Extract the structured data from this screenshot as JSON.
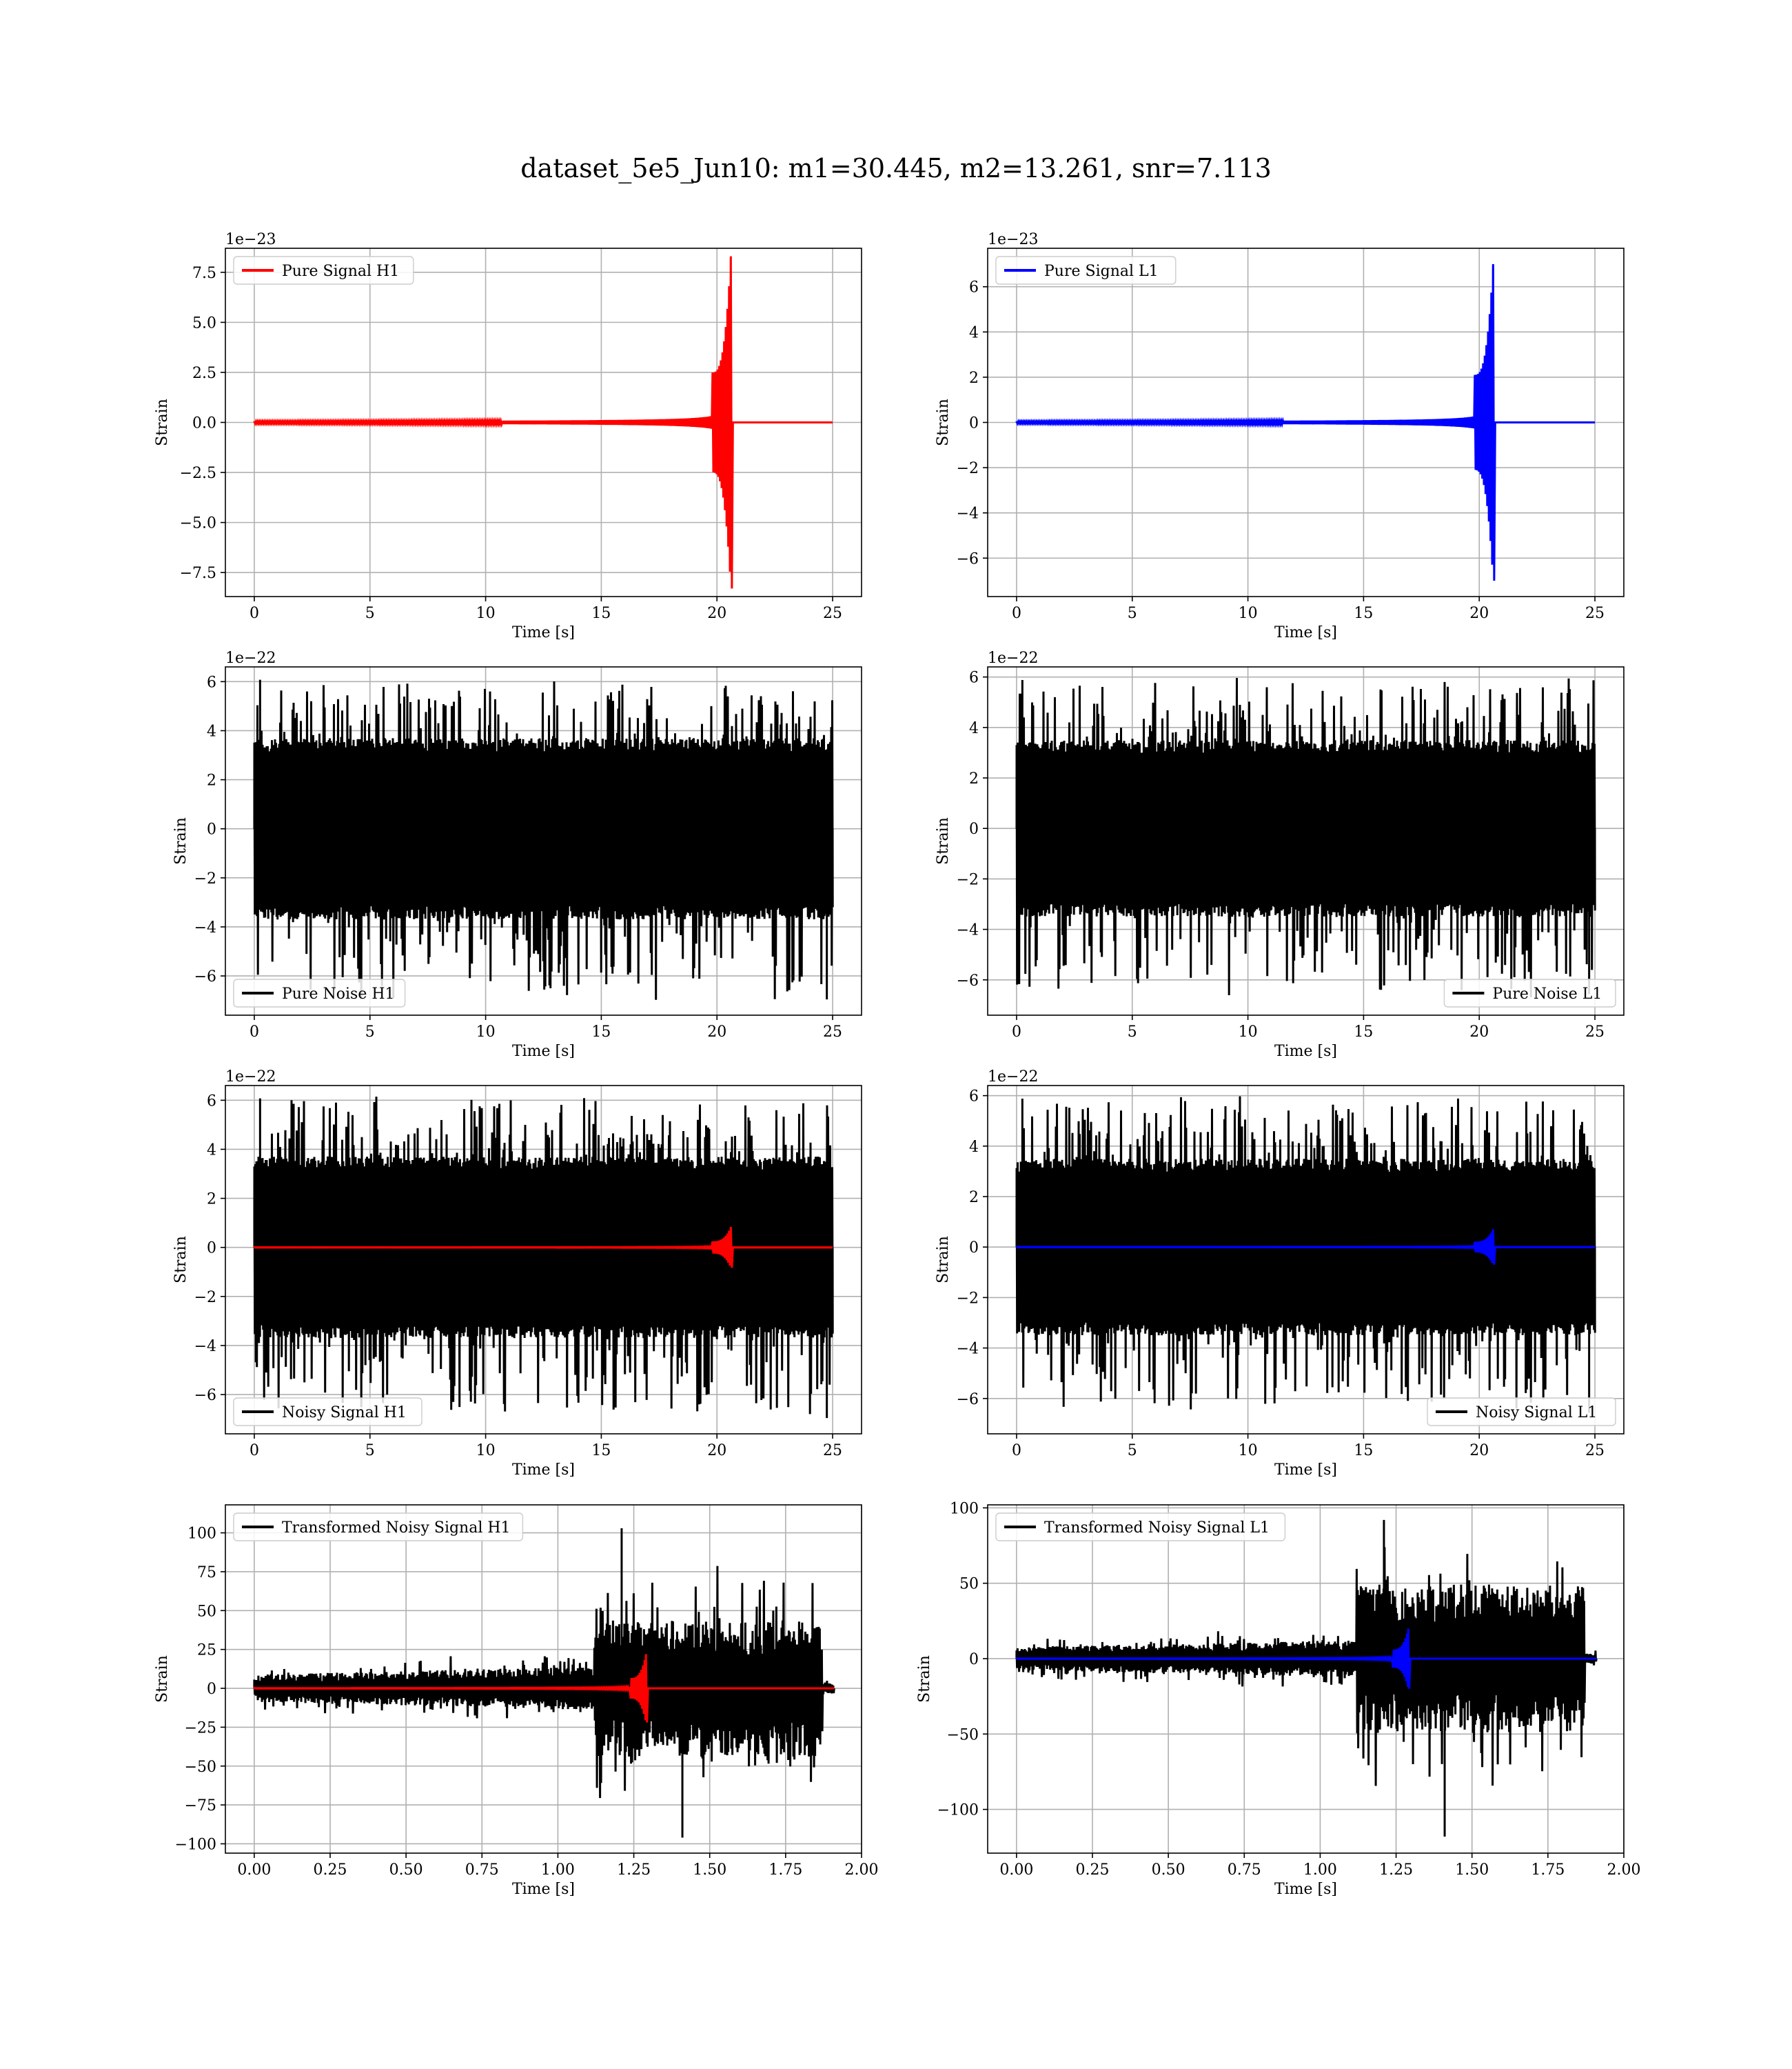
{
  "figure": {
    "suptitle": "dataset_5e5_Jun10: m1=30.445, m2=13.261, snr=7.113"
  },
  "chart_data": [
    {
      "id": "pure-signal-h1",
      "type": "line",
      "title": "",
      "xlabel": "Time [s]",
      "ylabel": "Strain",
      "offset_label": "1e−23",
      "xlim": [
        -1.25,
        26.25
      ],
      "ylim": [
        -8.7,
        8.7
      ],
      "xticks": [
        0,
        5,
        10,
        15,
        20,
        25
      ],
      "xtick_labels": [
        "0",
        "5",
        "10",
        "15",
        "20",
        "25"
      ],
      "yticks": [
        -7.5,
        -5.0,
        -2.5,
        0.0,
        2.5,
        5.0,
        7.5
      ],
      "ytick_labels": [
        "−7.5",
        "−5.0",
        "−2.5",
        "0.0",
        "2.5",
        "5.0",
        "7.5"
      ],
      "grid": true,
      "legend_position": "upper left",
      "series": [
        {
          "name": "Pure Signal H1",
          "kind": "chirp",
          "color": "#ff0000",
          "x_start": 0,
          "x_end": 25,
          "merger_time": 20.6,
          "peak_amplitude": 8.3
        }
      ]
    },
    {
      "id": "pure-signal-l1",
      "type": "line",
      "title": "",
      "xlabel": "Time [s]",
      "ylabel": "Strain",
      "offset_label": "1e−23",
      "xlim": [
        -1.25,
        26.25
      ],
      "ylim": [
        -7.7,
        7.7
      ],
      "xticks": [
        0,
        5,
        10,
        15,
        20,
        25
      ],
      "xtick_labels": [
        "0",
        "5",
        "10",
        "15",
        "20",
        "25"
      ],
      "yticks": [
        -6,
        -4,
        -2,
        0,
        2,
        4,
        6
      ],
      "ytick_labels": [
        "−6",
        "−4",
        "−2",
        "0",
        "2",
        "4",
        "6"
      ],
      "grid": true,
      "legend_position": "upper left",
      "series": [
        {
          "name": "Pure Signal L1",
          "kind": "chirp",
          "color": "#0000ff",
          "x_start": 0,
          "x_end": 25,
          "merger_time": 20.6,
          "peak_amplitude": 7.0
        }
      ]
    },
    {
      "id": "pure-noise-h1",
      "type": "line",
      "title": "",
      "xlabel": "Time [s]",
      "ylabel": "Strain",
      "offset_label": "1e−22",
      "xlim": [
        -1.25,
        26.25
      ],
      "ylim": [
        -7.6,
        6.6
      ],
      "xticks": [
        0,
        5,
        10,
        15,
        20,
        25
      ],
      "xtick_labels": [
        "0",
        "5",
        "10",
        "15",
        "20",
        "25"
      ],
      "yticks": [
        -6,
        -4,
        -2,
        0,
        2,
        4,
        6
      ],
      "ytick_labels": [
        "−6",
        "−4",
        "−2",
        "0",
        "2",
        "4",
        "6"
      ],
      "grid": true,
      "legend_position": "lower left",
      "series": [
        {
          "name": "Pure Noise H1",
          "kind": "noise",
          "color": "#000000",
          "x_start": 0,
          "x_end": 25,
          "band": 3.7,
          "max": 6.2,
          "min": -7.1
        }
      ]
    },
    {
      "id": "pure-noise-l1",
      "type": "line",
      "title": "",
      "xlabel": "Time [s]",
      "ylabel": "Strain",
      "offset_label": "1e−22",
      "xlim": [
        -1.25,
        26.25
      ],
      "ylim": [
        -7.4,
        6.4
      ],
      "xticks": [
        0,
        5,
        10,
        15,
        20,
        25
      ],
      "xtick_labels": [
        "0",
        "5",
        "10",
        "15",
        "20",
        "25"
      ],
      "yticks": [
        -6,
        -4,
        -2,
        0,
        2,
        4,
        6
      ],
      "ytick_labels": [
        "−6",
        "−4",
        "−2",
        "0",
        "2",
        "4",
        "6"
      ],
      "grid": true,
      "legend_position": "lower right",
      "series": [
        {
          "name": "Pure Noise L1",
          "kind": "noise",
          "color": "#000000",
          "x_start": 0,
          "x_end": 25,
          "band": 3.5,
          "max": 6.0,
          "min": -6.7
        }
      ]
    },
    {
      "id": "noisy-signal-h1",
      "type": "line",
      "title": "",
      "xlabel": "Time [s]",
      "ylabel": "Strain",
      "offset_label": "1e−22",
      "xlim": [
        -1.25,
        26.25
      ],
      "ylim": [
        -7.6,
        6.6
      ],
      "xticks": [
        0,
        5,
        10,
        15,
        20,
        25
      ],
      "xtick_labels": [
        "0",
        "5",
        "10",
        "15",
        "20",
        "25"
      ],
      "yticks": [
        -6,
        -4,
        -2,
        0,
        2,
        4,
        6
      ],
      "ytick_labels": [
        "−6",
        "−4",
        "−2",
        "0",
        "2",
        "4",
        "6"
      ],
      "grid": true,
      "legend_position": "lower left",
      "series": [
        {
          "name": "Noisy Signal H1",
          "kind": "noise",
          "color": "#000000",
          "x_start": 0,
          "x_end": 25,
          "band": 3.7,
          "max": 6.2,
          "min": -7.1
        },
        {
          "name": "",
          "kind": "chirp",
          "color": "#ff0000",
          "x_start": 0,
          "x_end": 25,
          "merger_time": 20.6,
          "peak_amplitude": 0.83
        }
      ]
    },
    {
      "id": "noisy-signal-l1",
      "type": "line",
      "title": "",
      "xlabel": "Time [s]",
      "ylabel": "Strain",
      "offset_label": "1e−22",
      "xlim": [
        -1.25,
        26.25
      ],
      "ylim": [
        -7.4,
        6.4
      ],
      "xticks": [
        0,
        5,
        10,
        15,
        20,
        25
      ],
      "xtick_labels": [
        "0",
        "5",
        "10",
        "15",
        "20",
        "25"
      ],
      "yticks": [
        -6,
        -4,
        -2,
        0,
        2,
        4,
        6
      ],
      "ytick_labels": [
        "−6",
        "−4",
        "−2",
        "0",
        "2",
        "4",
        "6"
      ],
      "grid": true,
      "legend_position": "lower right",
      "series": [
        {
          "name": "Noisy Signal L1",
          "kind": "noise",
          "color": "#000000",
          "x_start": 0,
          "x_end": 25,
          "band": 3.5,
          "max": 6.0,
          "min": -6.7
        },
        {
          "name": "",
          "kind": "chirp",
          "color": "#0000ff",
          "x_start": 0,
          "x_end": 25,
          "merger_time": 20.6,
          "peak_amplitude": 0.7
        }
      ]
    },
    {
      "id": "transformed-noisy-signal-h1",
      "type": "line",
      "title": "",
      "xlabel": "Time [s]",
      "ylabel": "Strain",
      "offset_label": "",
      "xlim": [
        -0.095,
        2.0
      ],
      "ylim": [
        -106,
        118
      ],
      "xticks": [
        0.0,
        0.25,
        0.5,
        0.75,
        1.0,
        1.25,
        1.5,
        1.75,
        2.0
      ],
      "xtick_labels": [
        "0.00",
        "0.25",
        "0.50",
        "0.75",
        "1.00",
        "1.25",
        "1.50",
        "1.75",
        "2.00"
      ],
      "yticks": [
        -100,
        -75,
        -50,
        -25,
        0,
        25,
        50,
        75,
        100
      ],
      "ytick_labels": [
        "−100",
        "−75",
        "−50",
        "−25",
        "0",
        "25",
        "50",
        "75",
        "100"
      ],
      "grid": true,
      "legend_position": "upper left",
      "series": [
        {
          "name": "Transformed Noisy Signal H1",
          "kind": "transformed",
          "color": "#000000",
          "x_start": 0.0,
          "x_end": 1.91,
          "step_time": 1.12,
          "cutoff_time": 1.87,
          "early_band": 8,
          "late_band": 40,
          "max": 103,
          "min": -96
        },
        {
          "name": "",
          "kind": "chirp",
          "color": "#ff0000",
          "x_start": 0.0,
          "x_end": 1.91,
          "merger_time": 1.29,
          "peak_amplitude": 22
        }
      ]
    },
    {
      "id": "transformed-noisy-signal-l1",
      "type": "line",
      "title": "",
      "xlabel": "Time [s]",
      "ylabel": "Strain",
      "offset_label": "",
      "xlim": [
        -0.095,
        2.0
      ],
      "ylim": [
        -129,
        102
      ],
      "xticks": [
        0.0,
        0.25,
        0.5,
        0.75,
        1.0,
        1.25,
        1.5,
        1.75,
        2.0
      ],
      "xtick_labels": [
        "0.00",
        "0.25",
        "0.50",
        "0.75",
        "1.00",
        "1.25",
        "1.50",
        "1.75",
        "2.00"
      ],
      "yticks": [
        -100,
        -50,
        0,
        50,
        100
      ],
      "ytick_labels": [
        "−100",
        "−50",
        "0",
        "50",
        "100"
      ],
      "grid": true,
      "legend_position": "upper left",
      "series": [
        {
          "name": "Transformed Noisy Signal L1",
          "kind": "transformed",
          "color": "#000000",
          "x_start": 0.0,
          "x_end": 1.91,
          "step_time": 1.12,
          "cutoff_time": 1.87,
          "early_band": 7,
          "late_band": 45,
          "max": 92,
          "min": -118
        },
        {
          "name": "",
          "kind": "chirp",
          "color": "#0000ff",
          "x_start": 0.0,
          "x_end": 1.91,
          "merger_time": 1.29,
          "peak_amplitude": 20
        }
      ]
    }
  ]
}
